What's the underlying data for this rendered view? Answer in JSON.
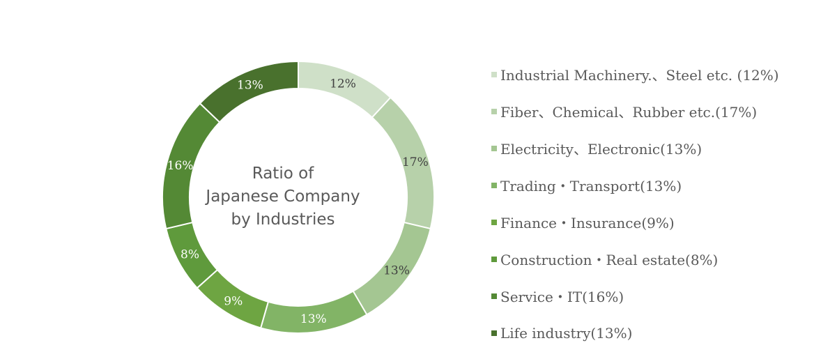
{
  "chart_data": {
    "type": "pie",
    "title_lines": [
      "Ratio of",
      "Japanese Company",
      "by Industries"
    ],
    "slices": [
      {
        "label": "Industrial Machinery.、Steel etc. (12%)",
        "value": 12,
        "data_label": "12%",
        "color": "#cfe0c8"
      },
      {
        "label": "Fiber、Chemical、Rubber etc.(17%)",
        "value": 17,
        "data_label": "17%",
        "color": "#b7d1aa"
      },
      {
        "label": "Electricity、Electronic(13%)",
        "value": 13,
        "data_label": "13%",
        "color": "#a4c692"
      },
      {
        "label": "Trading・Transport(13%)",
        "value": 13,
        "data_label": "13%",
        "color": "#82b466"
      },
      {
        "label": "Finance・Insurance(9%)",
        "value": 9,
        "data_label": "9%",
        "color": "#6ea542"
      },
      {
        "label": "Construction・Real estate(8%)",
        "value": 8,
        "data_label": "8%",
        "color": "#5f9a3c"
      },
      {
        "label": "Service・IT(16%)",
        "value": 16,
        "data_label": "16%",
        "color": "#548935"
      },
      {
        "label": "Life industry(13%)",
        "value": 13,
        "data_label": "13%",
        "color": "#49712d"
      }
    ],
    "legend_position": "right",
    "donut": true
  }
}
